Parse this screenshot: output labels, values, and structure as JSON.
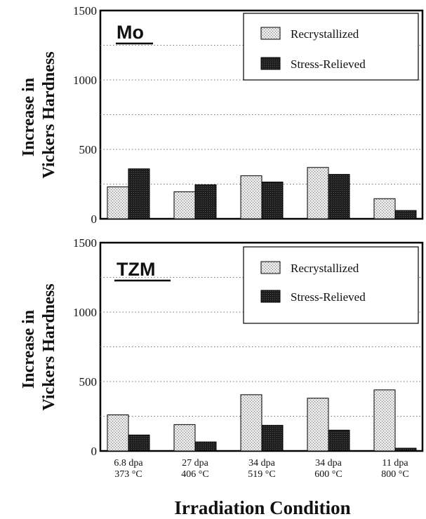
{
  "figure": {
    "xlabel": "Irradiation Condition",
    "categories": [
      [
        "6.8 dpa",
        "373 °C"
      ],
      [
        "27 dpa",
        "406 °C"
      ],
      [
        "34 dpa",
        "519 °C"
      ],
      [
        "34 dpa",
        "600 °C"
      ],
      [
        "11 dpa",
        "800 °C"
      ]
    ]
  },
  "colors": {
    "recrystallized": "#cfcfcf",
    "stress_relieved": "#1e1e1e"
  },
  "chart_data": [
    {
      "type": "bar",
      "title": "Mo",
      "ylabel": [
        "Increase in",
        "Vickers Hardness"
      ],
      "ylim": [
        0,
        1500
      ],
      "yticks": [
        0,
        500,
        1000,
        1500
      ],
      "grid": true,
      "legend_position": "top-right",
      "categories": [
        "6.8 dpa 373 °C",
        "27 dpa 406 °C",
        "34 dpa 519 °C",
        "34 dpa 600 °C",
        "11 dpa 800 °C"
      ],
      "series": [
        {
          "name": "Recrystallized",
          "values": [
            230,
            195,
            310,
            370,
            145
          ]
        },
        {
          "name": "Stress-Relieved",
          "values": [
            360,
            245,
            265,
            320,
            60
          ]
        }
      ]
    },
    {
      "type": "bar",
      "title": "TZM",
      "ylabel": [
        "Increase in",
        "Vickers Hardness"
      ],
      "ylim": [
        0,
        1500
      ],
      "yticks": [
        0,
        500,
        1000,
        1500
      ],
      "grid": true,
      "legend_position": "top-right",
      "categories": [
        "6.8 dpa 373 °C",
        "27 dpa 406 °C",
        "34 dpa 519 °C",
        "34 dpa 600 °C",
        "11 dpa 800 °C"
      ],
      "series": [
        {
          "name": "Recrystallized",
          "values": [
            260,
            190,
            405,
            380,
            440
          ]
        },
        {
          "name": "Stress-Relieved",
          "values": [
            115,
            65,
            185,
            150,
            20
          ]
        }
      ]
    }
  ]
}
